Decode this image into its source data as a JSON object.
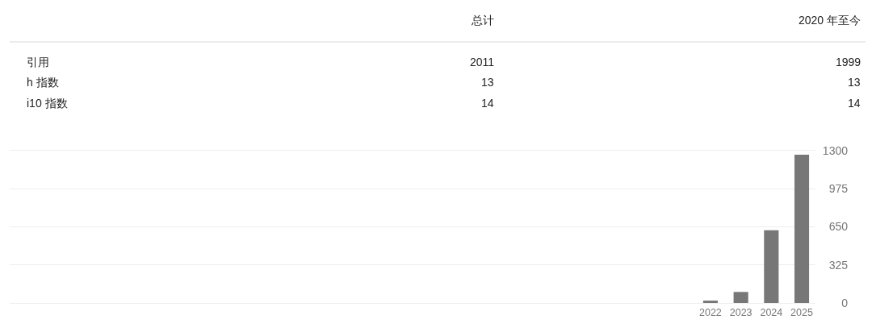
{
  "chart_data": [
    {
      "type": "other",
      "categories": [
        "总计",
        "2020 年至今"
      ],
      "y_categories": [
        "引用",
        "h 指数",
        "i10 指数"
      ],
      "cell_labels": [
        [
          "2011",
          "1999"
        ],
        [
          "13",
          "13"
        ],
        [
          "14",
          "14"
        ]
      ]
    },
    {
      "type": "bar",
      "categories": [
        "2022",
        "2023",
        "2024",
        "2025"
      ],
      "values": [
        20,
        94,
        620,
        1265
      ],
      "color": "#777777",
      "ylim": [
        0,
        1300
      ],
      "yticks": [
        0,
        325,
        650,
        975,
        1300
      ],
      "grid": "y"
    }
  ]
}
